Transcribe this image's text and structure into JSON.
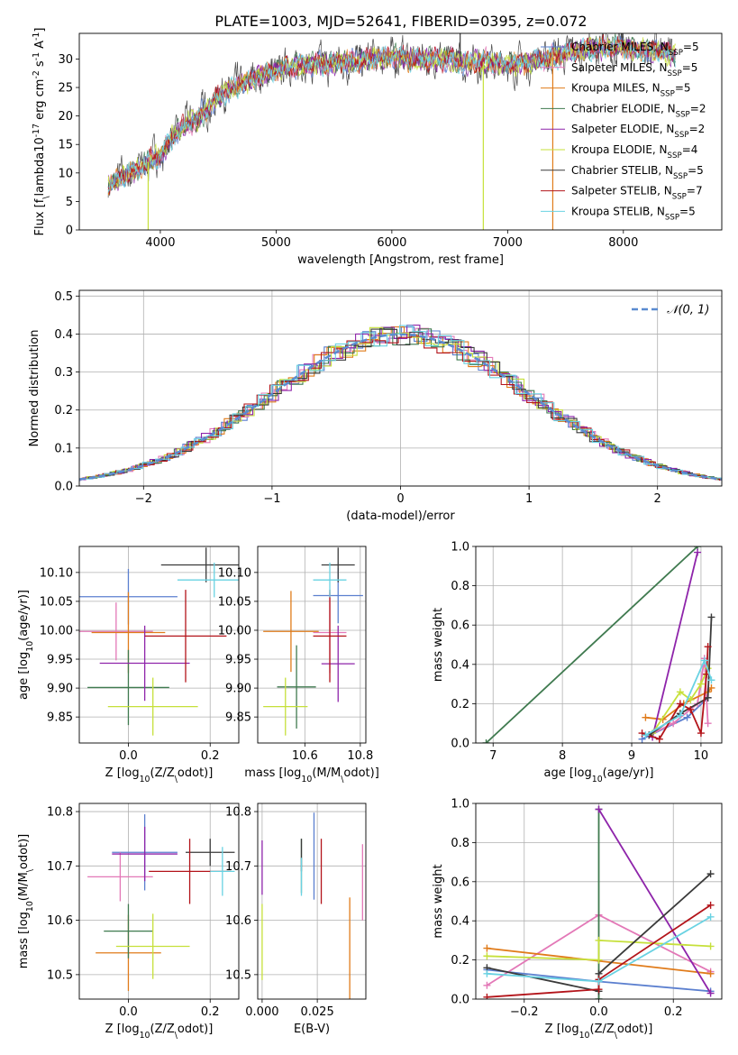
{
  "figure": {
    "title": "PLATE=1003, MJD=52641, FIBERID=0395, z=0.072"
  },
  "models": [
    {
      "label": "Chabrier MILES, N$_{SSP}$=5",
      "color": "#5b7fcf"
    },
    {
      "label": "Salpeter MILES, N$_{SSP}$=5",
      "color": "#e378b7"
    },
    {
      "label": "Kroupa MILES, N$_{SSP}$=5",
      "color": "#e07b1a"
    },
    {
      "label": "Chabrier ELODIE, N$_{SSP}$=2",
      "color": "#3f7a4f"
    },
    {
      "label": "Salpeter ELODIE, N$_{SSP}$=2",
      "color": "#8e24aa"
    },
    {
      "label": "Kroupa ELODIE, N$_{SSP}$=4",
      "color": "#c6e03a"
    },
    {
      "label": "Chabrier STELIB, N$_{SSP}$=5",
      "color": "#3a3a3a"
    },
    {
      "label": "Salpeter STELIB, N$_{SSP}$=7",
      "color": "#b3141a"
    },
    {
      "label": "Kroupa STELIB, N$_{SSP}$=5",
      "color": "#69d2e2"
    }
  ],
  "chart_data": [
    {
      "id": "spectrum",
      "type": "line",
      "xlabel": "wavelength [Angstrom, rest frame]",
      "ylabel": "Flux [f$_\\lambda$10$^{-17}$ erg cm$^{-2}$ s$^{-1}$ A$^{-1}$]",
      "xlim": [
        3300,
        8850
      ],
      "ylim": [
        0,
        34.5
      ],
      "xticks": [
        4000,
        5000,
        6000,
        7000,
        8000
      ],
      "yticks": [
        0,
        5,
        10,
        15,
        20,
        25,
        30
      ],
      "grid": false,
      "legend": "top-right",
      "continuum": {
        "x": [
          3550,
          3700,
          3900,
          4000,
          4100,
          4200,
          4300,
          4400,
          4500,
          4600,
          4800,
          5000,
          5200,
          5400,
          5600,
          5800,
          6000,
          6200,
          6400,
          6600,
          6800,
          7000,
          7200,
          7400,
          7600,
          7800,
          8000,
          8200,
          8400
        ],
        "y": [
          8,
          9.5,
          12,
          13,
          16,
          18,
          19.5,
          21,
          23.5,
          24.5,
          26.5,
          28,
          29,
          29,
          29.5,
          30,
          30.5,
          30,
          30,
          29.5,
          29.5,
          29,
          29.5,
          30.5,
          31.5,
          32,
          32,
          31.5,
          31
        ]
      },
      "spikes": [
        {
          "x": 3895,
          "y": 0
        },
        {
          "x": 6790,
          "y": 0
        },
        {
          "x": 7390,
          "y": 0
        },
        {
          "x": 6590,
          "y": 34.5
        },
        {
          "x": 7620,
          "y": 32.5
        }
      ]
    },
    {
      "id": "residuals",
      "type": "histogram",
      "xlabel": "(data-model)/error",
      "ylabel": "Normed distribution",
      "xlim": [
        -2.5,
        2.5
      ],
      "ylim": [
        0,
        0.515
      ],
      "xticks": [
        -2,
        -1,
        0,
        1,
        2
      ],
      "yticks": [
        0.0,
        0.1,
        0.2,
        0.3,
        0.4,
        0.5
      ],
      "grid": true,
      "legend": "top-right",
      "reference": {
        "label": "$\\mathcal{N}(0,1)$",
        "mu": 0,
        "sigma": 1,
        "color": "#5b8bd0"
      },
      "bin_width": 0.1
    },
    {
      "id": "age_vs_Z",
      "type": "errorbar",
      "xlabel": "Z [log$_{10}$($Z/Z_\\odot$)]",
      "ylabel": "age  [log$_{10}$($age/yr$)]",
      "xlim": [
        -0.12,
        0.27
      ],
      "ylim": [
        9.805,
        10.145
      ],
      "xticks": [
        0.0,
        0.2
      ],
      "yticks": [
        9.85,
        9.9,
        9.95,
        10.0,
        10.05,
        10.1
      ],
      "grid": true,
      "points": [
        {
          "x": 0.0,
          "xerr": 0.12,
          "y": 10.058,
          "yerr": 0.048
        },
        {
          "x": -0.03,
          "xerr": 0.09,
          "y": 9.998,
          "yerr": 0.05
        },
        {
          "x": 0.0,
          "xerr": 0.09,
          "y": 9.996,
          "yerr": 0.07
        },
        {
          "x": 0.0,
          "xerr": 0.1,
          "y": 9.901,
          "yerr": 0.065
        },
        {
          "x": 0.04,
          "xerr": 0.11,
          "y": 9.943,
          "yerr": 0.065
        },
        {
          "x": 0.06,
          "xerr": 0.11,
          "y": 9.868,
          "yerr": 0.05
        },
        {
          "x": 0.19,
          "xerr": 0.11,
          "y": 10.113,
          "yerr": 0.03
        },
        {
          "x": 0.14,
          "xerr": 0.1,
          "y": 9.99,
          "yerr": 0.08
        },
        {
          "x": 0.21,
          "xerr": 0.09,
          "y": 10.087,
          "yerr": 0.03
        }
      ]
    },
    {
      "id": "age_vs_mass",
      "type": "errorbar",
      "xlabel": "mass [log$_{10}$($M/M_\\odot$)]",
      "ylabel": "",
      "xlim": [
        10.43,
        10.82
      ],
      "ylim": [
        9.805,
        10.145
      ],
      "xticks": [
        10.6,
        10.8
      ],
      "yticks": [
        9.85,
        9.9,
        9.95,
        10.0,
        10.05,
        10.1
      ],
      "grid": true,
      "points": [
        {
          "x": 10.72,
          "xerr": 0.09,
          "y": 10.06,
          "yerr": 0.048
        },
        {
          "x": 10.69,
          "xerr": 0.06,
          "y": 9.996,
          "yerr": 0.07
        },
        {
          "x": 10.55,
          "xerr": 0.1,
          "y": 9.998,
          "yerr": 0.07
        },
        {
          "x": 10.57,
          "xerr": 0.07,
          "y": 9.902,
          "yerr": 0.072
        },
        {
          "x": 10.72,
          "xerr": 0.06,
          "y": 9.942,
          "yerr": 0.066
        },
        {
          "x": 10.53,
          "xerr": 0.08,
          "y": 9.868,
          "yerr": 0.05
        },
        {
          "x": 10.72,
          "xerr": 0.06,
          "y": 10.113,
          "yerr": 0.03
        },
        {
          "x": 10.69,
          "xerr": 0.06,
          "y": 9.99,
          "yerr": 0.08
        },
        {
          "x": 10.69,
          "xerr": 0.06,
          "y": 10.087,
          "yerr": 0.03
        }
      ]
    },
    {
      "id": "massweight_vs_age",
      "type": "line",
      "xlabel": "age  [log$_{10}$($age/yr$)]",
      "ylabel": "mass weight",
      "xlim": [
        6.75,
        10.3
      ],
      "ylim": [
        0,
        1
      ],
      "xticks": [
        7,
        8,
        9,
        10
      ],
      "yticks": [
        0.0,
        0.2,
        0.4,
        0.6,
        0.8,
        1.0
      ],
      "grid": true,
      "series": [
        {
          "x": [
            9.15,
            9.8,
            10.1
          ],
          "y": [
            0.02,
            0.13,
            0.23
          ]
        },
        {
          "x": [
            9.25,
            9.6,
            9.95,
            10.05,
            10.1
          ],
          "y": [
            0.04,
            0.1,
            0.2,
            0.43,
            0.1
          ]
        },
        {
          "x": [
            9.2,
            9.45,
            9.75,
            10.1,
            10.15
          ],
          "y": [
            0.13,
            0.12,
            0.2,
            0.26,
            0.28
          ]
        },
        {
          "x": [
            6.9,
            9.95
          ],
          "y": [
            0.0,
            1.0
          ]
        },
        {
          "x": [
            9.3,
            9.95
          ],
          "y": [
            0.03,
            0.97
          ]
        },
        {
          "x": [
            9.3,
            9.7,
            9.85,
            10.0,
            10.1
          ],
          "y": [
            0.05,
            0.26,
            0.22,
            0.3,
            0.38
          ]
        },
        {
          "x": [
            9.25,
            9.7,
            10.1,
            10.15
          ],
          "y": [
            0.04,
            0.15,
            0.23,
            0.64
          ]
        },
        {
          "x": [
            9.15,
            9.4,
            9.7,
            9.85,
            10.0,
            10.08,
            10.1
          ],
          "y": [
            0.05,
            0.02,
            0.2,
            0.17,
            0.05,
            0.35,
            0.49
          ]
        },
        {
          "x": [
            9.2,
            9.7,
            10.05,
            10.15
          ],
          "y": [
            0.04,
            0.14,
            0.42,
            0.32
          ]
        }
      ]
    },
    {
      "id": "mass_vs_Z",
      "type": "errorbar",
      "xlabel": "Z [log$_{10}$($Z/Z_\\odot$)]",
      "ylabel": "mass [log$_{10}$($M/M_\\odot$)]",
      "xlim": [
        -0.12,
        0.27
      ],
      "ylim": [
        10.455,
        10.815
      ],
      "xticks": [
        0.0,
        0.2
      ],
      "yticks": [
        10.5,
        10.6,
        10.7,
        10.8
      ],
      "grid": true,
      "points": [
        {
          "x": 0.04,
          "xerr": 0.08,
          "y": 10.725,
          "yerr": 0.07
        },
        {
          "x": -0.02,
          "xerr": 0.08,
          "y": 10.68,
          "yerr": 0.045
        },
        {
          "x": 0.0,
          "xerr": 0.08,
          "y": 10.54,
          "yerr": 0.07
        },
        {
          "x": 0.0,
          "xerr": 0.06,
          "y": 10.58,
          "yerr": 0.05
        },
        {
          "x": 0.04,
          "xerr": 0.08,
          "y": 10.722,
          "yerr": 0.05
        },
        {
          "x": 0.06,
          "xerr": 0.09,
          "y": 10.552,
          "yerr": 0.06
        },
        {
          "x": 0.2,
          "xerr": 0.06,
          "y": 10.725,
          "yerr": 0.025
        },
        {
          "x": 0.15,
          "xerr": 0.1,
          "y": 10.69,
          "yerr": 0.06
        },
        {
          "x": 0.23,
          "xerr": 0.03,
          "y": 10.69,
          "yerr": 0.045
        }
      ]
    },
    {
      "id": "mass_vs_EBV",
      "type": "errorbar",
      "xlabel": "E(B-V)",
      "ylabel": "",
      "xlim": [
        -0.002,
        0.047
      ],
      "ylim": [
        10.455,
        10.815
      ],
      "xticks": [
        0.0,
        0.025
      ],
      "yticks": [
        10.5,
        10.6,
        10.7,
        10.8
      ],
      "grid": true,
      "points": [
        {
          "x": 0.0235,
          "y": 10.718,
          "yerr": 0.08
        },
        {
          "x": 0.0455,
          "y": 10.67,
          "yerr": 0.07
        },
        {
          "x": 0.0397,
          "y": 10.542,
          "yerr": 0.1
        },
        {
          "x": 0.0178,
          "y": 10.7,
          "yerr": 0.05
        },
        {
          "x": 0.0,
          "y": 10.697,
          "yerr": 0.05
        },
        {
          "x": 0.0,
          "y": 10.56,
          "yerr": 0.07
        },
        {
          "x": 0.0178,
          "y": 10.72,
          "yerr": 0.03
        },
        {
          "x": 0.0268,
          "y": 10.69,
          "yerr": 0.06
        },
        {
          "x": 0.0178,
          "y": 10.68,
          "yerr": 0.035
        }
      ]
    },
    {
      "id": "massweight_vs_Z",
      "type": "line",
      "xlabel": "Z [log$_{10}$($Z/Z_\\odot$)]",
      "ylabel": "mass weight",
      "xlim": [
        -0.33,
        0.33
      ],
      "ylim": [
        0,
        1
      ],
      "xticks": [
        -0.2,
        0.0,
        0.2
      ],
      "yticks": [
        0.0,
        0.2,
        0.4,
        0.6,
        0.8,
        1.0
      ],
      "grid": true,
      "series": [
        {
          "x": [
            -0.3,
            0.0,
            0.3
          ],
          "y": [
            0.15,
            0.09,
            0.04
          ]
        },
        {
          "x": [
            -0.3,
            0.0,
            0.3
          ],
          "y": [
            0.07,
            0.43,
            0.14
          ]
        },
        {
          "x": [
            -0.3,
            0.3
          ],
          "y": [
            0.26,
            0.13
          ]
        },
        {
          "x": [
            0.0,
            0.0
          ],
          "y": [
            0.0,
            0.97
          ]
        },
        {
          "x": [
            0.0,
            0.3
          ],
          "y": [
            0.97,
            0.03
          ]
        },
        {
          "x": [
            -0.3,
            0.0,
            0.0,
            0.3
          ],
          "y": [
            0.22,
            0.2,
            0.3,
            0.27
          ]
        },
        {
          "x": [
            -0.3,
            0.0,
            0.0,
            0.3
          ],
          "y": [
            0.16,
            0.04,
            0.13,
            0.64
          ]
        },
        {
          "x": [
            -0.3,
            0.0,
            0.0,
            0.3
          ],
          "y": [
            0.01,
            0.05,
            0.1,
            0.48
          ]
        },
        {
          "x": [
            -0.3,
            0.0,
            0.3
          ],
          "y": [
            0.13,
            0.09,
            0.42
          ]
        }
      ]
    }
  ]
}
